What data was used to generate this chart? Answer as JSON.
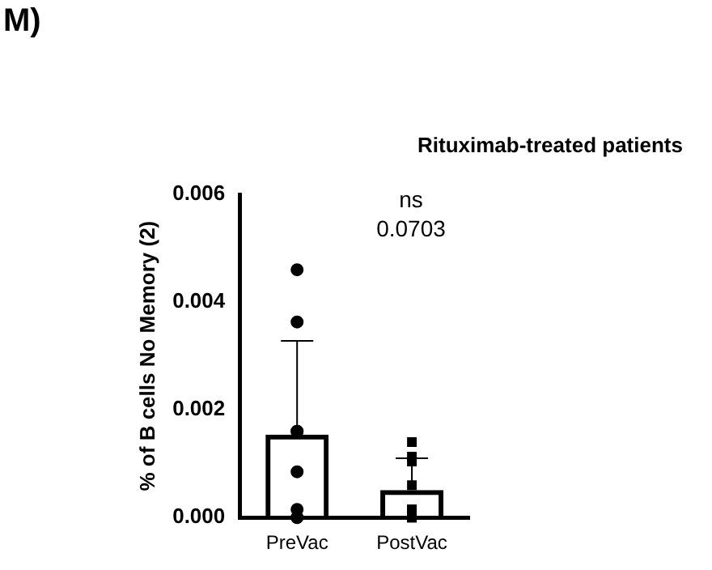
{
  "chart_data": {
    "type": "bar",
    "title": "Rituximab-treated patients",
    "ylabel": "% of B cells No Memory (2)",
    "categories": [
      "PreVac",
      "PostVac"
    ],
    "series": [
      {
        "color": "#000000",
        "values": [
          0.00154,
          0.00051
        ],
        "errors": [
          [
            0.00154,
            0.00328
          ],
          [
            0.00051,
            0.0011
          ]
        ]
      },
      {
        "type": "scatter",
        "color": "#000000",
        "marker": "circle",
        "x": [
          "PreVac",
          "PreVac",
          "PreVac",
          "PreVac",
          "PreVac",
          "PreVac",
          "PreVac",
          "PreVac"
        ],
        "values": [
          0.0046,
          0.00363,
          0.0016,
          0.0016,
          0.00085,
          0.00015,
          0,
          0
        ]
      },
      {
        "type": "scatter",
        "color": "#000000",
        "marker": "square",
        "x": [
          "PostVac",
          "PostVac",
          "PostVac",
          "PostVac",
          "PostVac",
          "PostVac",
          "PostVac",
          "PostVac"
        ],
        "values": [
          0.0014,
          0.00113,
          0.00104,
          0.0006,
          0.00015,
          0.00015,
          0,
          0
        ]
      }
    ],
    "ylim": [
      0,
      0.006
    ],
    "yticks": [
      {
        "value": 0,
        "label": "0.000"
      },
      {
        "value": 0.002,
        "label": "0.002"
      },
      {
        "value": 0.004,
        "label": "0.004"
      },
      {
        "value": 0.006,
        "label": "0.006"
      }
    ],
    "grid": false,
    "legend": false,
    "annotations": [
      "M)",
      "ns",
      "0.0703"
    ]
  }
}
